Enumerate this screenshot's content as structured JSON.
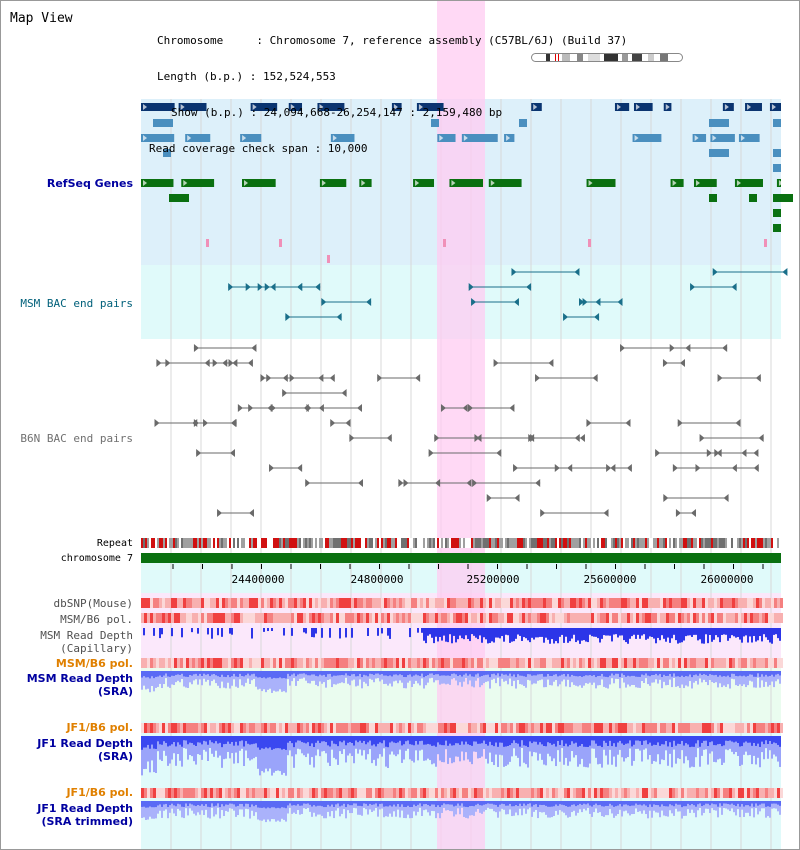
{
  "app": {
    "title": "Map View"
  },
  "info": {
    "chromosome_line": "Chromosome     : Chromosome 7, reference assembly (C57BL/6J) (Build 37)",
    "length_line": "Length (b.p.) : 152,524,553",
    "show_line": "Show (b.p.) : 24,094,668-26,254,147 : 2,159,480 bp",
    "coverage_line": "Read coverage check span : 10,000"
  },
  "tracks": {
    "refseq": "RefSeq Genes",
    "msm_bac": "MSM BAC end pairs",
    "b6n_bac": "B6N BAC end pairs",
    "repeat": "Repeat",
    "chromosome": "chromosome 7",
    "dbsnp": "dbSNP(Mouse)",
    "msm_b6_pol_1": "MSM/B6 pol.",
    "msm_depth_cap_1": "MSM Read Depth",
    "msm_depth_cap_2": "(Capillary)",
    "msm_b6_pol_2": "MSM/B6 pol.",
    "msm_depth_sra_1": "MSM Read Depth",
    "msm_depth_sra_2": "(SRA)",
    "jf1_b6_pol_1": "JF1/B6 pol.",
    "jf1_depth_sra_1": "JF1 Read Depth",
    "jf1_depth_sra_2": "(SRA)",
    "jf1_b6_pol_2": "JF1/B6 pol.",
    "jf1_depth_trim_1": "JF1 Read Depth",
    "jf1_depth_trim_2": "(SRA trimmed)"
  },
  "axis": {
    "ticks": [
      "24400000",
      "24800000",
      "25200000",
      "25600000",
      "26000000"
    ]
  },
  "colors": {
    "refseq_bg": "#ddf0fa",
    "gene_dark": "#0a3470",
    "gene_mid": "#4a8fbf",
    "gene_green": "#0a7010",
    "msm_bg": "#e0fafa",
    "highlight": "#ffccf2",
    "depth_blue": "#3040f0",
    "pol_red": "#f05050"
  }
}
